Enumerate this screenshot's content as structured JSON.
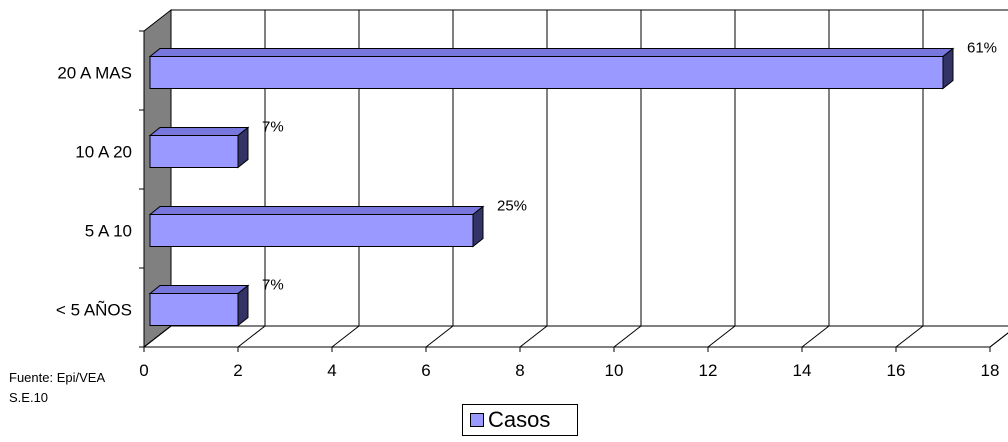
{
  "chart_data": {
    "type": "bar",
    "orientation": "horizontal",
    "style": "3d",
    "categories": [
      "20 A MAS",
      "10 A  20",
      "5 A 10",
      "< 5 AÑOS"
    ],
    "series": [
      {
        "name": "Casos",
        "values": [
          17,
          2,
          7,
          2
        ],
        "labels": [
          "61%",
          "7%",
          "25%",
          "7%"
        ]
      }
    ],
    "xlim": [
      0,
      18
    ],
    "xticks": [
      "0",
      "2",
      "4",
      "6",
      "8",
      "10",
      "12",
      "14",
      "16",
      "18"
    ],
    "grid": true,
    "legend": "bottom-center",
    "colors": {
      "bar_front": "#9999ff",
      "bar_top": "#7777dd",
      "bar_side": "#333366",
      "wall": "#808080"
    }
  },
  "source_line1": "Fuente: Epi/VEA",
  "source_line2": "S.E.10"
}
